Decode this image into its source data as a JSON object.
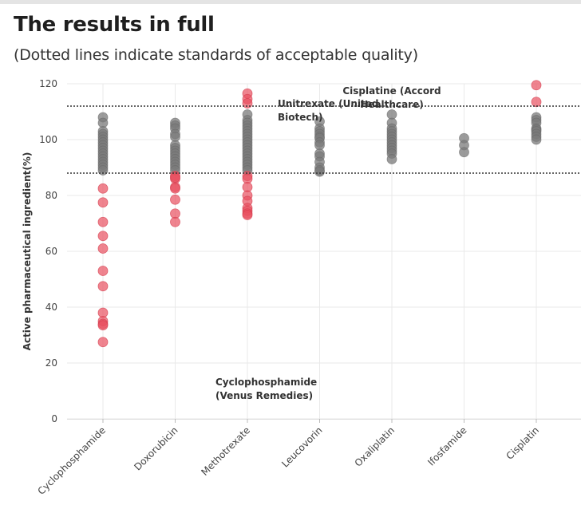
{
  "header": {
    "title": "The results in full",
    "subtitle": "(Dotted lines indicate standards of acceptable quality)"
  },
  "colors": {
    "pass": "#7a7a7a",
    "fail": "#e8505f",
    "grid": "#e9e9e9",
    "reference": "#333333"
  },
  "chart_data": {
    "type": "scatter",
    "title": "The results in full",
    "subtitle": "(Dotted lines indicate standards of acceptable quality)",
    "xlabel": "",
    "ylabel": "Active pharmaceutical ingredient(%)",
    "ylim": [
      0,
      120
    ],
    "yticks": [
      0,
      20,
      40,
      60,
      80,
      100,
      120
    ],
    "grid": true,
    "reference_lines": [
      112,
      88
    ],
    "categories": [
      "Cyclophosphamide",
      "Doxorubicin",
      "Methotrexate",
      "Leucovorin",
      "Oxaliplatin",
      "Ifosfamide",
      "Cisplatin"
    ],
    "series": [
      {
        "name": "Cyclophosphamide",
        "within_standard": [
          108,
          106,
          103,
          102,
          101,
          100,
          99,
          98,
          97,
          96,
          95,
          94,
          93,
          92,
          91,
          90,
          89
        ],
        "outside_standard": [
          82.5,
          77.5,
          70.5,
          65.5,
          61,
          53,
          47.5,
          38,
          35,
          34,
          33.5,
          27.5
        ]
      },
      {
        "name": "Doxorubicin",
        "within_standard": [
          106,
          105,
          104,
          102,
          101,
          98,
          97,
          96,
          95,
          94,
          93,
          92,
          91,
          90,
          89
        ],
        "outside_standard": [
          87,
          86,
          86.5,
          83,
          82.5,
          78.5,
          73.5,
          70.5
        ]
      },
      {
        "name": "Methotrexate",
        "within_standard": [
          109,
          107,
          106,
          105,
          104,
          103,
          102,
          101,
          100,
          99,
          98,
          97,
          96,
          95,
          94,
          93,
          92,
          91,
          90,
          89
        ],
        "outside_standard": [
          116.5,
          114.5,
          113,
          87,
          86,
          83,
          80,
          78,
          75.5,
          74.5,
          73.5,
          73
        ]
      },
      {
        "name": "Leucovorin",
        "within_standard": [
          106.5,
          104,
          103,
          102,
          101,
          100.5,
          99,
          98,
          95,
          94,
          92,
          90,
          89,
          88.5
        ],
        "outside_standard": []
      },
      {
        "name": "Oxaliplatin",
        "within_standard": [
          109,
          106,
          104,
          103,
          102,
          101,
          100,
          99,
          98,
          97,
          96,
          95,
          93
        ],
        "outside_standard": []
      },
      {
        "name": "Ifosfamide",
        "within_standard": [
          100.5,
          98,
          95.5
        ],
        "outside_standard": []
      },
      {
        "name": "Cisplatin",
        "within_standard": [
          108,
          107,
          106,
          104,
          103.5,
          103,
          102,
          101,
          100
        ],
        "outside_standard": [
          119.5,
          113.5
        ]
      }
    ],
    "annotations": [
      {
        "lines": [
          "Unitrexate (United",
          "Biotech)"
        ]
      },
      {
        "lines": [
          "Cisplatine (Accord",
          "Healthcare)"
        ]
      },
      {
        "lines": [
          "Cyclophosphamide",
          "(Venus Remedies)"
        ]
      }
    ]
  }
}
